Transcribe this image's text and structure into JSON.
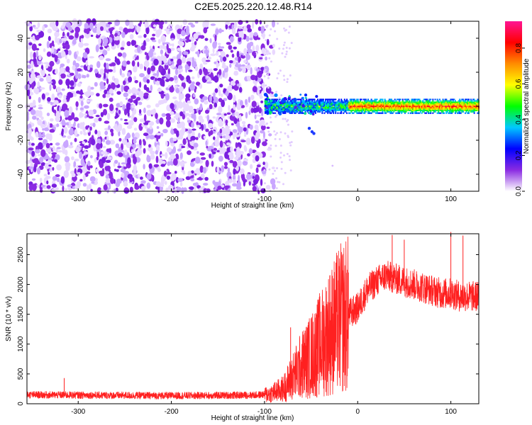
{
  "title": "C2E5.2025.220.12.48.R14",
  "chart_data": [
    {
      "type": "heatmap",
      "xlabel": "Height of straight line (km)",
      "ylabel": "Frequency (Hz)",
      "xlim": [
        -355,
        130
      ],
      "ylim": [
        -50,
        50
      ],
      "xticks": [
        -300,
        -200,
        -100,
        0,
        100
      ],
      "yticks": [
        -40,
        -20,
        0,
        20,
        40
      ],
      "grid": false,
      "description_regions": [
        {
          "x_range": [
            -355,
            -100
          ],
          "freq_range": [
            -50,
            50
          ],
          "level": "noise, ~0.1-0.3"
        },
        {
          "x_range": [
            -100,
            130
          ],
          "freq_range": [
            -3,
            3
          ],
          "level": "carrier band, peak ~0.9 for x > -10"
        }
      ],
      "colorbar": {
        "label": "Normalized spectral amplitude",
        "min": 0.0,
        "max": 0.95,
        "ticks": [
          "0.0",
          "0.2",
          "0.4",
          "0.6",
          "0.8"
        ],
        "colormap": [
          "#ffffff",
          "#8a2be2",
          "#0000ff",
          "#00c8ff",
          "#00ff00",
          "#ffff00",
          "#ff8c00",
          "#ff0000",
          "#ff1493"
        ]
      }
    },
    {
      "type": "line",
      "xlabel": "Height of straight line (km)",
      "ylabel": "SNR (10 * v/v)",
      "xlim": [
        -355,
        130
      ],
      "ylim": [
        0,
        2850
      ],
      "xticks": [
        -300,
        -200,
        -100,
        0,
        100
      ],
      "yticks": [
        0,
        500,
        1000,
        1500,
        2000,
        2500
      ],
      "grid": false,
      "color": "#ff2020",
      "envelope": {
        "x": [
          -355,
          -300,
          -250,
          -200,
          -150,
          -110,
          -95,
          -80,
          -70,
          -60,
          -50,
          -40,
          -30,
          -20,
          -10,
          0,
          10,
          20,
          30,
          40,
          50,
          60,
          70,
          80,
          90,
          100,
          110,
          120,
          130
        ],
        "y": [
          150,
          145,
          140,
          135,
          140,
          145,
          160,
          250,
          450,
          650,
          800,
          1000,
          1200,
          1400,
          1500,
          1600,
          1900,
          2050,
          2150,
          2100,
          2050,
          2000,
          1950,
          1900,
          1850,
          1850,
          1800,
          1800,
          1800
        ]
      },
      "spikes": [
        {
          "x": -315,
          "y": 430
        },
        {
          "x": -72,
          "y": 1280
        },
        {
          "x": -44,
          "y": 1500
        },
        {
          "x": -30,
          "y": 2150
        },
        {
          "x": -10,
          "y": 2200
        },
        {
          "x": 37,
          "y": 2830
        },
        {
          "x": 50,
          "y": 2750
        },
        {
          "x": 100,
          "y": 2880
        },
        {
          "x": 113,
          "y": 2820
        }
      ]
    }
  ]
}
